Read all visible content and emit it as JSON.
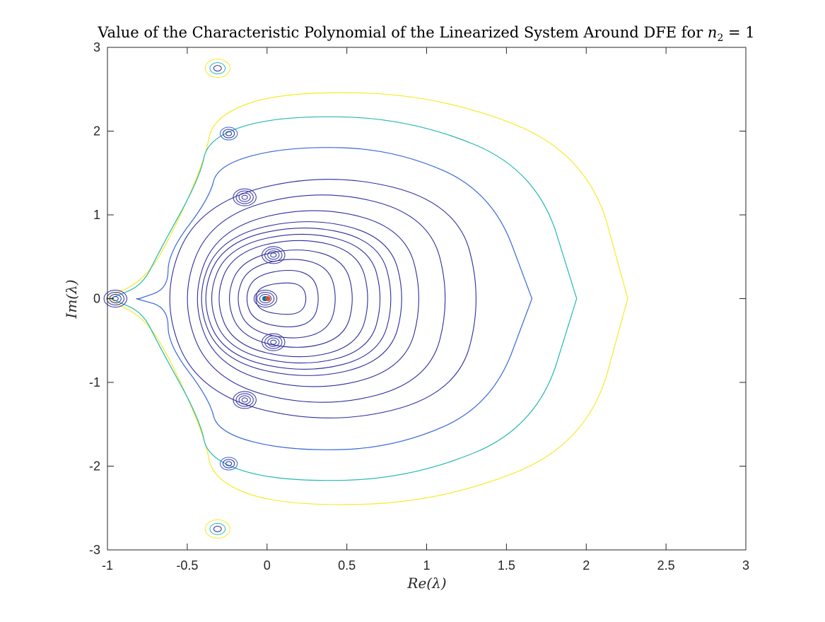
{
  "chart_data": {
    "type": "contour",
    "title": "Value of the Characteristic Polynomial of the Linearized System Around DFE for n₂ = 1",
    "title_main": "Value of the Characteristic Polynomial of the Linearized System Around DFE for ",
    "title_math_var": "n",
    "title_math_sub": "2",
    "title_math_rest": " = 1",
    "xlabel": "Re(λ)",
    "ylabel": "Im(λ)",
    "xlim": [
      -1,
      3
    ],
    "ylim": [
      -3,
      3
    ],
    "xticks": [
      -1,
      -0.5,
      0,
      0.5,
      1,
      1.5,
      2,
      2.5,
      3
    ],
    "xtick_labels": [
      "-1",
      "-0.5",
      "0",
      "0.5",
      "1",
      "1.5",
      "2",
      "2.5",
      "3"
    ],
    "yticks": [
      -3,
      -2,
      -1,
      0,
      1,
      2,
      3
    ],
    "ytick_labels": [
      "-3",
      "-2",
      "-1",
      "0",
      "1",
      "2",
      "3"
    ],
    "grid": false,
    "level_colors": {
      "low": "#2c2c9e",
      "mid": "#3868d8",
      "cyan": "#24b8b0",
      "yellow": "#f6ea2a"
    },
    "roots": [
      {
        "re": -0.31,
        "im": 2.75
      },
      {
        "re": -0.31,
        "im": -2.75
      },
      {
        "re": -0.24,
        "im": 1.97
      },
      {
        "re": -0.24,
        "im": -1.97
      },
      {
        "re": -0.14,
        "im": 1.21
      },
      {
        "re": -0.14,
        "im": -1.21
      },
      {
        "re": 0.04,
        "im": 0.52
      },
      {
        "re": 0.04,
        "im": -0.52
      },
      {
        "re": -0.95,
        "im": 0
      },
      {
        "re": -0.01,
        "im": 0
      }
    ],
    "markers": [
      {
        "re": -0.015,
        "im": 0,
        "color": "#0072bd"
      },
      {
        "re": 0.005,
        "im": 0,
        "color": "#d95319"
      }
    ],
    "outer_contours": [
      {
        "name": "yellow-contour",
        "color": "yellow",
        "right_re": 2.26,
        "top_im": 2.48,
        "neck_re": -0.69,
        "left_re": -1.0,
        "left_halfwidth": 0.07
      },
      {
        "name": "cyan-contour",
        "color": "cyan",
        "right_re": 1.94,
        "top_im": 2.19,
        "neck_re": -0.72,
        "left_re": -0.98,
        "left_halfwidth": 0.04
      },
      {
        "name": "blue-contour",
        "color": "mid",
        "right_re": 1.66,
        "top_im": 1.82,
        "neck_re": -0.66,
        "left_re": -0.82,
        "left_halfwidth": 0.0
      }
    ],
    "inner_contours": [
      {
        "right_re": 1.35,
        "top_im": 1.52,
        "left_re": -0.67
      },
      {
        "right_re": 1.15,
        "top_im": 1.32,
        "left_re": -0.55
      },
      {
        "right_re": 0.98,
        "top_im": 1.12,
        "left_re": -0.48
      },
      {
        "right_re": 0.87,
        "top_im": 0.98,
        "left_re": -0.45
      },
      {
        "right_re": 0.8,
        "top_im": 0.9,
        "left_re": -0.42
      },
      {
        "right_re": 0.73,
        "top_im": 0.82,
        "left_re": -0.38
      },
      {
        "right_re": 0.65,
        "top_im": 0.74,
        "left_re": -0.33
      },
      {
        "right_re": 0.55,
        "top_im": 0.62,
        "left_re": -0.26
      },
      {
        "right_re": 0.44,
        "top_im": 0.5,
        "left_re": -0.2
      },
      {
        "right_re": 0.33,
        "top_im": 0.36,
        "left_re": -0.14
      },
      {
        "right_re": 0.25,
        "top_im": 0.2,
        "left_re": -0.08
      }
    ]
  }
}
